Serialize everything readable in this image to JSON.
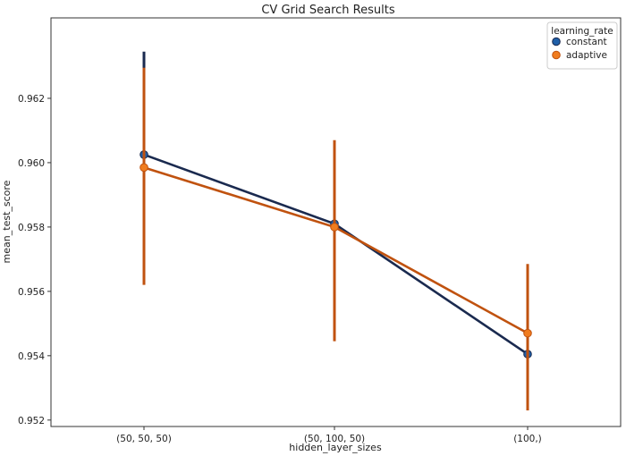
{
  "chart_data": {
    "type": "line",
    "title": "CV Grid Search Results",
    "xlabel": "hidden_layer_sizes",
    "ylabel": "mean_test_score",
    "categories": [
      "(50, 50, 50)",
      "(50, 100, 50)",
      "(100,)"
    ],
    "ylim": [
      0.9518,
      0.9645
    ],
    "yticks": [
      "0.952",
      "0.954",
      "0.956",
      "0.958",
      "0.960",
      "0.962"
    ],
    "legend": {
      "title": "learning_rate",
      "placement": "top-right"
    },
    "grid": false,
    "series": [
      {
        "name": "constant",
        "values": [
          0.96025,
          0.9581,
          0.95405
        ],
        "err_low": [
          0.9571,
          0.9562,
          0.9523
        ],
        "err_high": [
          0.96345,
          0.9598,
          0.95655
        ],
        "line_color": "#1a2a4f",
        "marker_color": "#1f5fa8"
      },
      {
        "name": "adaptive",
        "values": [
          0.95985,
          0.958,
          0.9547
        ],
        "err_low": [
          0.9562,
          0.95445,
          0.9523
        ],
        "err_high": [
          0.96295,
          0.9607,
          0.95685
        ],
        "line_color": "#c0520f",
        "marker_color": "#f07c1e"
      }
    ]
  }
}
